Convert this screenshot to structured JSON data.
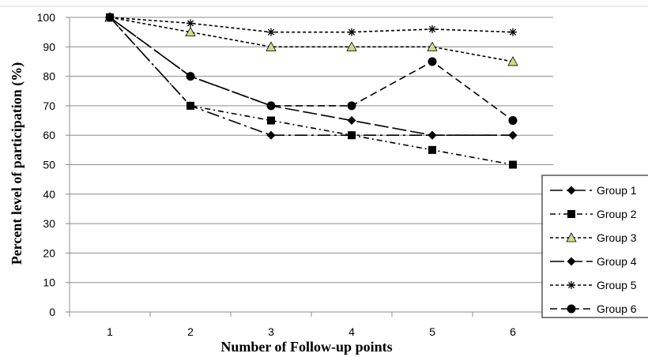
{
  "chart_data": {
    "type": "line",
    "title": "",
    "xlabel": "Number of Follow-up points",
    "ylabel": "Percent level of participation (%)",
    "categories": [
      "1",
      "2",
      "3",
      "4",
      "5",
      "6"
    ],
    "ylim": [
      0,
      100
    ],
    "yticks": [
      "0",
      "10",
      "20",
      "30",
      "40",
      "50",
      "60",
      "70",
      "80",
      "90",
      "100"
    ],
    "grid": "horizontal",
    "legend_position": "right",
    "series": [
      {
        "name": "Group 1",
        "values": [
          100,
          70,
          60,
          60,
          60,
          60
        ],
        "marker": "diamond",
        "dash": "long-dash-dot",
        "color": "#000000"
      },
      {
        "name": "Group 2",
        "values": [
          100,
          70,
          65,
          60,
          55,
          50
        ],
        "marker": "square",
        "dash": "dash-dot",
        "color": "#000000"
      },
      {
        "name": "Group 3",
        "values": [
          100,
          95,
          90,
          90,
          90,
          85
        ],
        "marker": "triangle",
        "dash": "dotted",
        "color": "#000000",
        "marker_fill": "#d4dc8c"
      },
      {
        "name": "Group 4",
        "values": [
          100,
          80,
          70,
          65,
          60,
          60
        ],
        "marker": "diamond",
        "dash": "long-dash",
        "color": "#000000"
      },
      {
        "name": "Group 5",
        "values": [
          100,
          98,
          95,
          95,
          96,
          95
        ],
        "marker": "asterisk",
        "dash": "dotted",
        "color": "#000000"
      },
      {
        "name": "Group 6",
        "values": [
          100,
          80,
          70,
          70,
          85,
          65
        ],
        "marker": "circle",
        "dash": "dashed",
        "color": "#000000"
      }
    ]
  }
}
